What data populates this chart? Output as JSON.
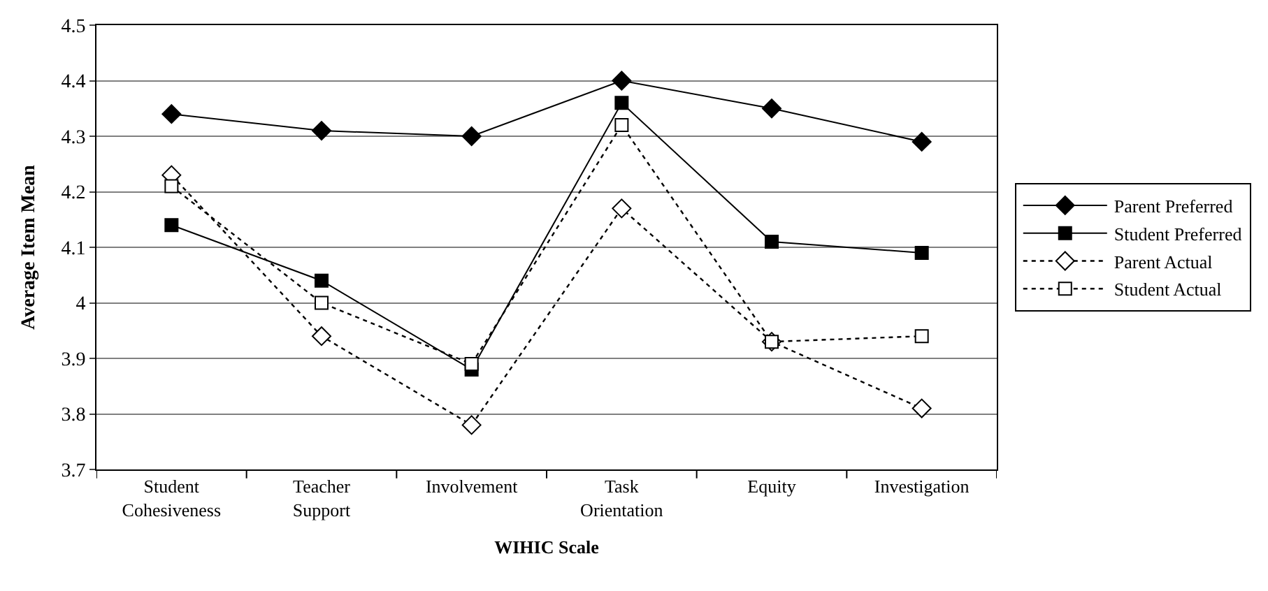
{
  "chart_data": {
    "type": "line",
    "xlabel": "WIHIC Scale",
    "ylabel": "Average Item Mean",
    "categories": [
      "Student Cohesiveness",
      "Teacher Support",
      "Involvement",
      "Task Orientation",
      "Equity",
      "Investigation"
    ],
    "series": [
      {
        "name": "Parent Preferred",
        "color": "#000000",
        "marker": "diamond",
        "line_style": "solid",
        "values": [
          4.34,
          4.31,
          4.3,
          4.4,
          4.35,
          4.29
        ]
      },
      {
        "name": "Student Preferred",
        "color": "#000000",
        "marker": "square",
        "line_style": "solid",
        "values": [
          4.14,
          4.04,
          3.88,
          4.36,
          4.11,
          4.09
        ]
      },
      {
        "name": "Parent Actual",
        "color": "#000000",
        "marker": "diamond",
        "line_style": "dotted",
        "values": [
          4.23,
          3.94,
          3.78,
          4.17,
          3.93,
          3.81
        ]
      },
      {
        "name": "Student Actual",
        "color": "#000000",
        "marker": "square",
        "line_style": "dotted",
        "values": [
          4.21,
          4.0,
          3.89,
          4.32,
          3.93,
          3.94
        ]
      }
    ],
    "ylim": [
      3.7,
      4.5
    ],
    "yticks": [
      3.7,
      3.8,
      3.9,
      4,
      4.1,
      4.2,
      4.3,
      4.4,
      4.5
    ],
    "grid": "y",
    "legend": "right"
  }
}
